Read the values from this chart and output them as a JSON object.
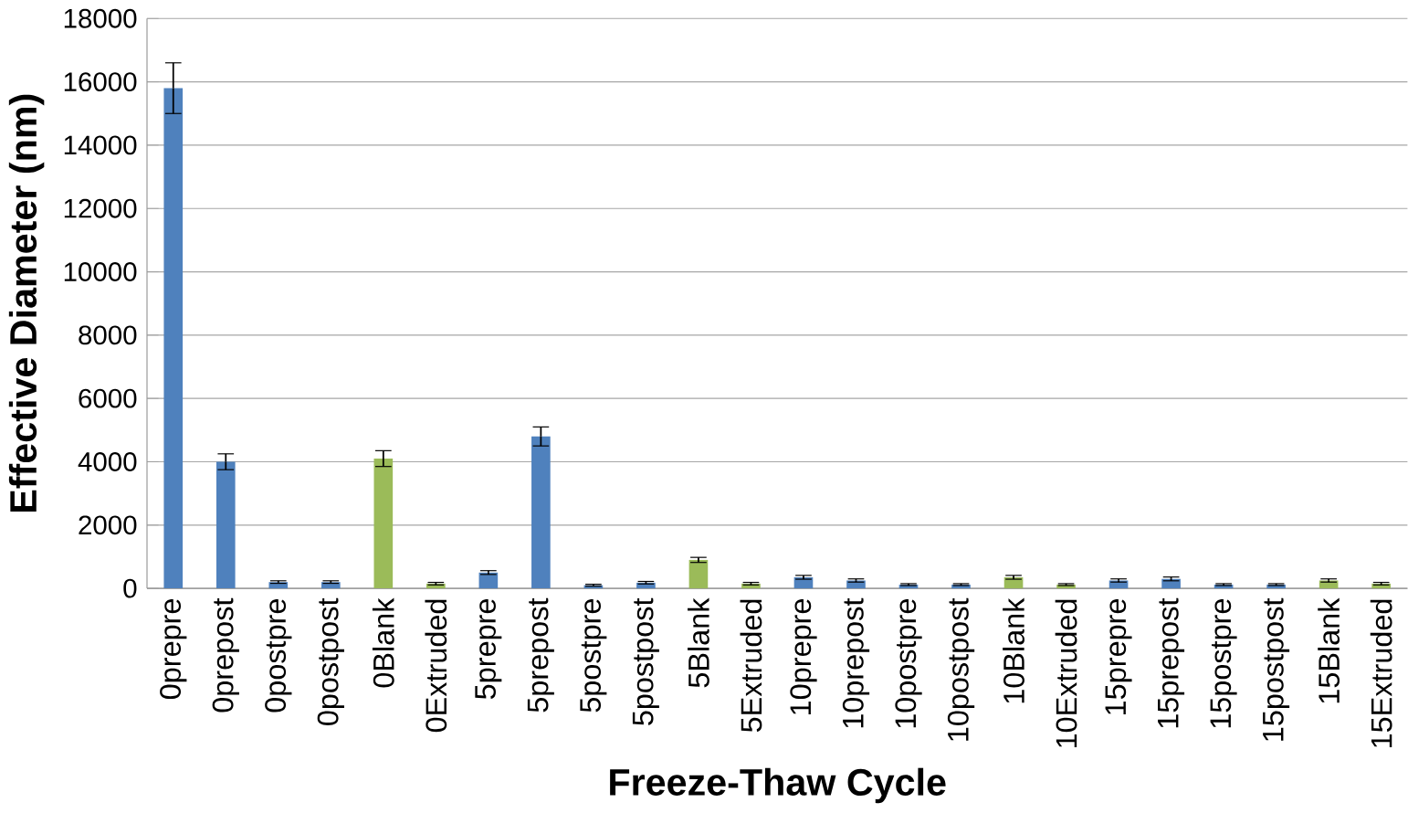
{
  "chart_data": {
    "type": "bar",
    "xlabel": "Freeze-Thaw Cycle",
    "ylabel": "Effective Diameter (nm)",
    "categories": [
      "0prepre",
      "0prepost",
      "0postpre",
      "0postpost",
      "0Blank",
      "0Extruded",
      "5prepre",
      "5prepost",
      "5postpre",
      "5postpost",
      "5Blank",
      "5Extruded",
      "10prepre",
      "10prepost",
      "10postpre",
      "10postpost",
      "10Blank",
      "10Extruded",
      "15prepre",
      "15prepost",
      "15postpre",
      "15postpost",
      "15Blank",
      "15Extruded"
    ],
    "values": [
      15800,
      4000,
      200,
      200,
      4100,
      150,
      500,
      4800,
      100,
      180,
      900,
      150,
      350,
      250,
      120,
      120,
      350,
      120,
      250,
      300,
      120,
      120,
      250,
      150
    ],
    "errors": [
      800,
      250,
      40,
      40,
      250,
      40,
      60,
      300,
      30,
      40,
      80,
      40,
      60,
      50,
      30,
      30,
      60,
      30,
      50,
      60,
      30,
      30,
      50,
      40
    ],
    "colors": [
      "#4f81bd",
      "#4f81bd",
      "#4f81bd",
      "#4f81bd",
      "#9bbb59",
      "#9bbb59",
      "#4f81bd",
      "#4f81bd",
      "#4f81bd",
      "#4f81bd",
      "#9bbb59",
      "#9bbb59",
      "#4f81bd",
      "#4f81bd",
      "#4f81bd",
      "#4f81bd",
      "#9bbb59",
      "#9bbb59",
      "#4f81bd",
      "#4f81bd",
      "#4f81bd",
      "#4f81bd",
      "#9bbb59",
      "#9bbb59"
    ],
    "ylim": [
      0,
      18000
    ],
    "yticks": [
      0,
      2000,
      4000,
      6000,
      8000,
      10000,
      12000,
      14000,
      16000,
      18000
    ],
    "grid": "y"
  }
}
